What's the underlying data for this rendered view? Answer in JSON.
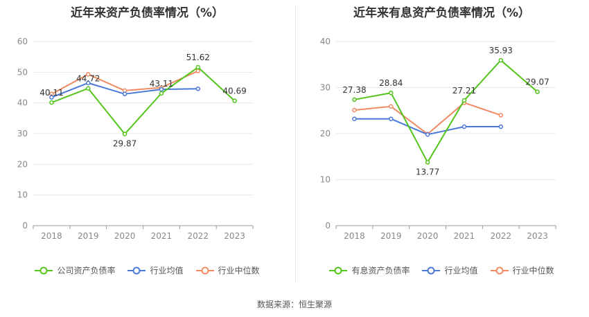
{
  "chart_data": [
    {
      "type": "line",
      "title": "近年来资产负债率情况（%）",
      "categories": [
        "2018",
        "2019",
        "2020",
        "2021",
        "2022",
        "2023"
      ],
      "ylim": [
        0,
        60
      ],
      "yticks": [
        0,
        10,
        20,
        30,
        40,
        50,
        60
      ],
      "grid": true,
      "legend_position": "bottom",
      "series": [
        {
          "name": "公司资产负债率",
          "color": "#52c41a",
          "values": [
            40.11,
            44.72,
            29.87,
            43.11,
            51.62,
            40.69
          ],
          "labels": [
            "40.11",
            "44.72",
            "29.87",
            "43.11",
            "51.62",
            "40.69"
          ]
        },
        {
          "name": "行业均值",
          "color": "#4a78d8",
          "values": [
            41.8,
            46.5,
            42.9,
            44.4,
            44.6,
            null
          ]
        },
        {
          "name": "行业中位数",
          "color": "#f08a63",
          "values": [
            42.9,
            49.3,
            44.0,
            45.0,
            50.4,
            null
          ]
        }
      ]
    },
    {
      "type": "line",
      "title": "近年来有息资产负债率情况（%）",
      "categories": [
        "2018",
        "2019",
        "2020",
        "2021",
        "2022",
        "2023"
      ],
      "ylim": [
        0,
        40
      ],
      "yticks": [
        0,
        10,
        20,
        30,
        40
      ],
      "grid": true,
      "legend_position": "bottom",
      "series": [
        {
          "name": "有息资产负债率",
          "color": "#52c41a",
          "values": [
            27.38,
            28.84,
            13.77,
            27.21,
            35.93,
            29.07
          ],
          "labels": [
            "27.38",
            "28.84",
            "13.77",
            "27.21",
            "35.93",
            "29.07"
          ]
        },
        {
          "name": "行业均值",
          "color": "#4a78d8",
          "values": [
            23.2,
            23.2,
            19.8,
            21.5,
            21.5,
            null
          ]
        },
        {
          "name": "行业中位数",
          "color": "#f08a63",
          "values": [
            25.1,
            25.9,
            19.9,
            26.7,
            24.0,
            null
          ]
        }
      ]
    }
  ],
  "footer": {
    "source_label": "数据来源：",
    "source_name": "恒生聚源"
  }
}
